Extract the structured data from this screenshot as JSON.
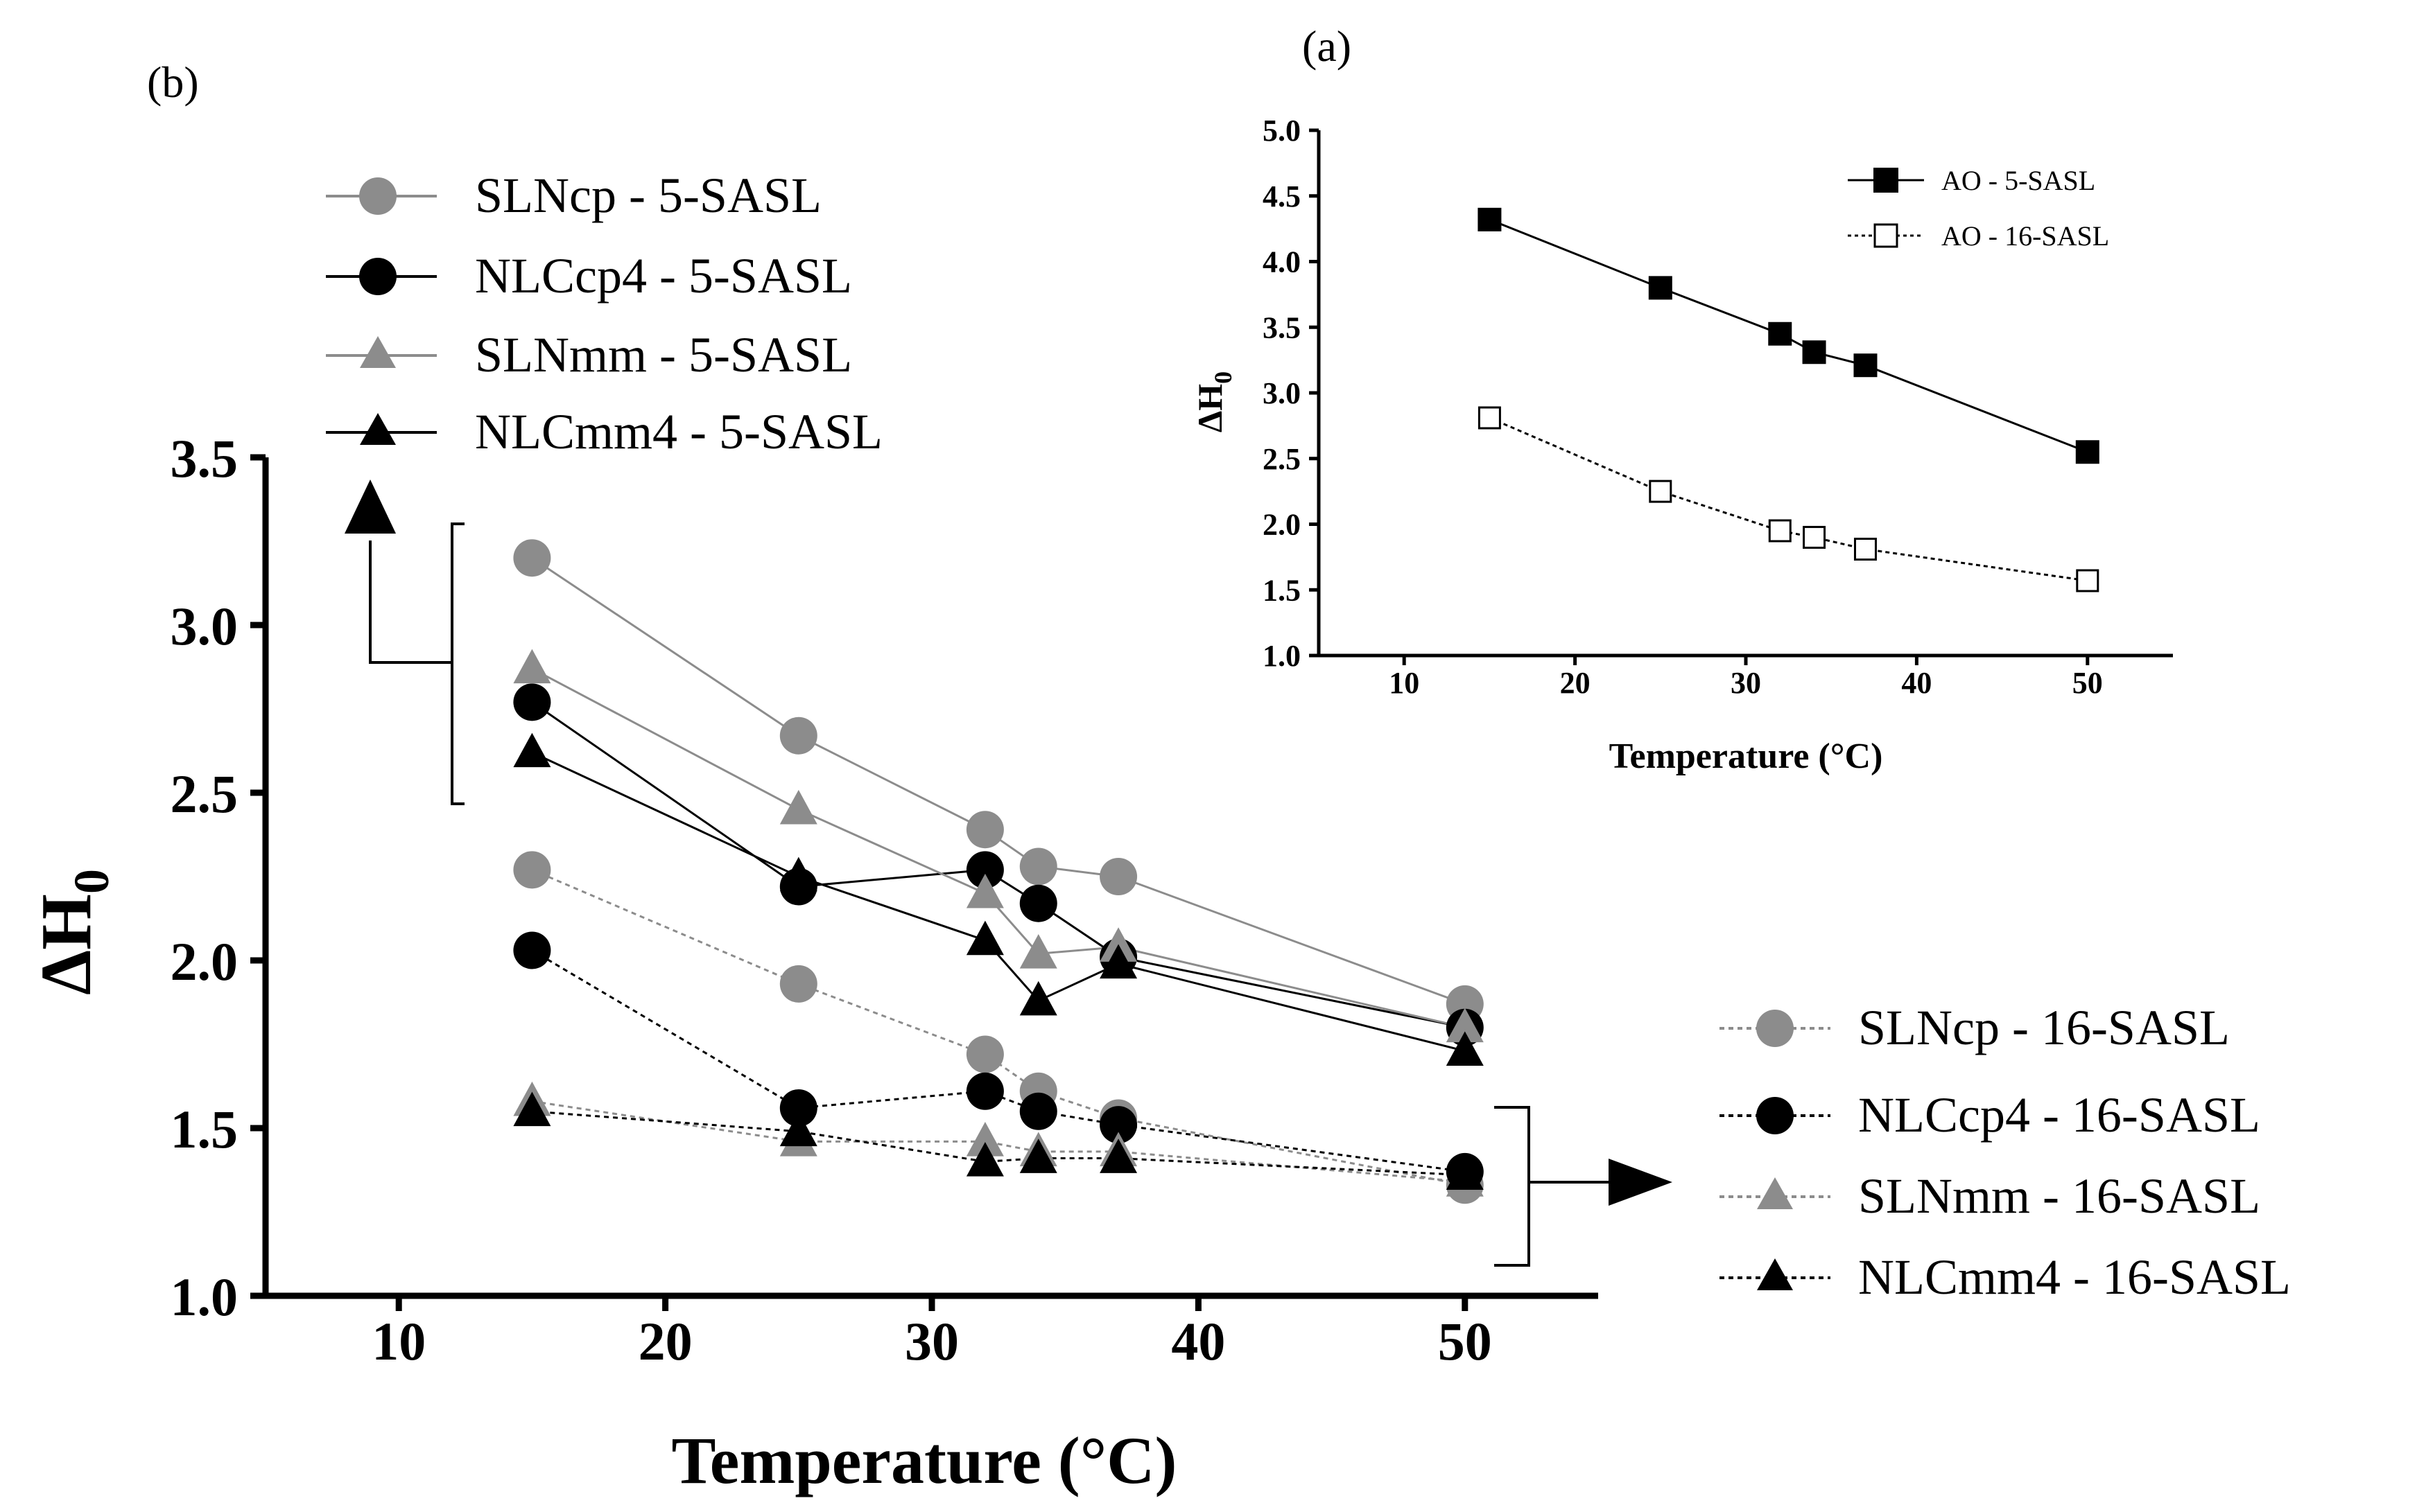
{
  "chart_data": [
    {
      "panel": "(b)",
      "type": "line",
      "xlabel": "Temperature (°C)",
      "ylabel": "ΔH",
      "ylabel_sub": "0",
      "xlim": [
        5,
        55
      ],
      "ylim": [
        1.0,
        3.5
      ],
      "xticks": [
        10,
        20,
        30,
        40,
        50
      ],
      "yticks": [
        1.0,
        1.5,
        2.0,
        2.5,
        3.0,
        3.5
      ],
      "ytick_labels": [
        "1.0",
        "1.5",
        "2.0",
        "2.5",
        "3.0",
        "3.5"
      ],
      "series": [
        {
          "name": "SLNcp - 5-SASL",
          "marker": "circle",
          "color": "#8c8c8c",
          "line": "solid",
          "x": [
            15,
            25,
            32,
            34,
            37,
            50
          ],
          "y": [
            3.2,
            2.67,
            2.39,
            2.28,
            2.25,
            1.87
          ]
        },
        {
          "name": "NLCcp4 - 5-SASL",
          "marker": "circle",
          "color": "#000000",
          "line": "solid",
          "x": [
            15,
            25,
            32,
            34,
            37,
            50
          ],
          "y": [
            2.77,
            2.22,
            2.27,
            2.17,
            2.01,
            1.8
          ]
        },
        {
          "name": "SLNmm - 5-SASL",
          "marker": "triangle",
          "color": "#8c8c8c",
          "line": "solid",
          "x": [
            15,
            25,
            32,
            34,
            37,
            50
          ],
          "y": [
            2.87,
            2.45,
            2.2,
            2.02,
            2.04,
            1.8
          ]
        },
        {
          "name": "NLCmm4 - 5-SASL",
          "marker": "triangle",
          "color": "#000000",
          "line": "solid",
          "x": [
            15,
            25,
            32,
            34,
            37,
            50
          ],
          "y": [
            2.62,
            2.25,
            2.06,
            1.88,
            1.99,
            1.73
          ]
        },
        {
          "name": "SLNcp - 16-SASL",
          "marker": "circle",
          "color": "#8c8c8c",
          "line": "dotted",
          "x": [
            15,
            25,
            32,
            34,
            37,
            50
          ],
          "y": [
            2.27,
            1.93,
            1.72,
            1.61,
            1.53,
            1.33
          ]
        },
        {
          "name": "NLCcp4 - 16-SASL",
          "marker": "circle",
          "color": "#000000",
          "line": "dotted",
          "x": [
            15,
            25,
            32,
            34,
            37,
            50
          ],
          "y": [
            2.03,
            1.56,
            1.61,
            1.55,
            1.51,
            1.37
          ]
        },
        {
          "name": "SLNmm - 16-SASL",
          "marker": "triangle",
          "color": "#8c8c8c",
          "line": "dotted",
          "x": [
            15,
            25,
            32,
            34,
            37,
            50
          ],
          "y": [
            1.58,
            1.46,
            1.46,
            1.43,
            1.43,
            1.34
          ]
        },
        {
          "name": "NLCmm4 - 16-SASL",
          "marker": "triangle",
          "color": "#000000",
          "line": "dotted",
          "x": [
            15,
            25,
            32,
            34,
            37,
            50
          ],
          "y": [
            1.55,
            1.49,
            1.4,
            1.41,
            1.41,
            1.36
          ]
        }
      ],
      "legend_5sasl": [
        "SLNcp - 5-SASL",
        "NLCcp4 - 5-SASL",
        "SLNmm - 5-SASL",
        "NLCmm4 - 5-SASL"
      ],
      "legend_16sasl": [
        "SLNcp - 16-SASL",
        "NLCcp4 - 16-SASL",
        "SLNmm - 16-SASL",
        "NLCmm4 - 16-SASL"
      ]
    },
    {
      "panel": "(a)",
      "type": "line",
      "xlabel": "Temperature (°C)",
      "ylabel": "ΔH",
      "ylabel_sub": "0",
      "xlim": [
        5,
        55
      ],
      "ylim": [
        1.0,
        5.0
      ],
      "xticks": [
        10,
        20,
        30,
        40,
        50
      ],
      "yticks": [
        1.0,
        1.5,
        2.0,
        2.5,
        3.0,
        3.5,
        4.0,
        4.5,
        5.0
      ],
      "ytick_labels": [
        "1.0",
        "1.5",
        "2.0",
        "2.5",
        "3.0",
        "3.5",
        "4.0",
        "4.5",
        "5.0"
      ],
      "series": [
        {
          "name": "AO -  5-SASL",
          "marker": "square-filled",
          "color": "#000000",
          "line": "solid",
          "x": [
            15,
            25,
            32,
            34,
            37,
            50
          ],
          "y": [
            4.32,
            3.8,
            3.45,
            3.31,
            3.21,
            2.55
          ]
        },
        {
          "name": "AO - 16-SASL",
          "marker": "square-open",
          "color": "#000000",
          "line": "dotted",
          "x": [
            15,
            25,
            32,
            34,
            37,
            50
          ],
          "y": [
            2.81,
            2.25,
            1.95,
            1.9,
            1.81,
            1.57
          ]
        }
      ]
    }
  ]
}
